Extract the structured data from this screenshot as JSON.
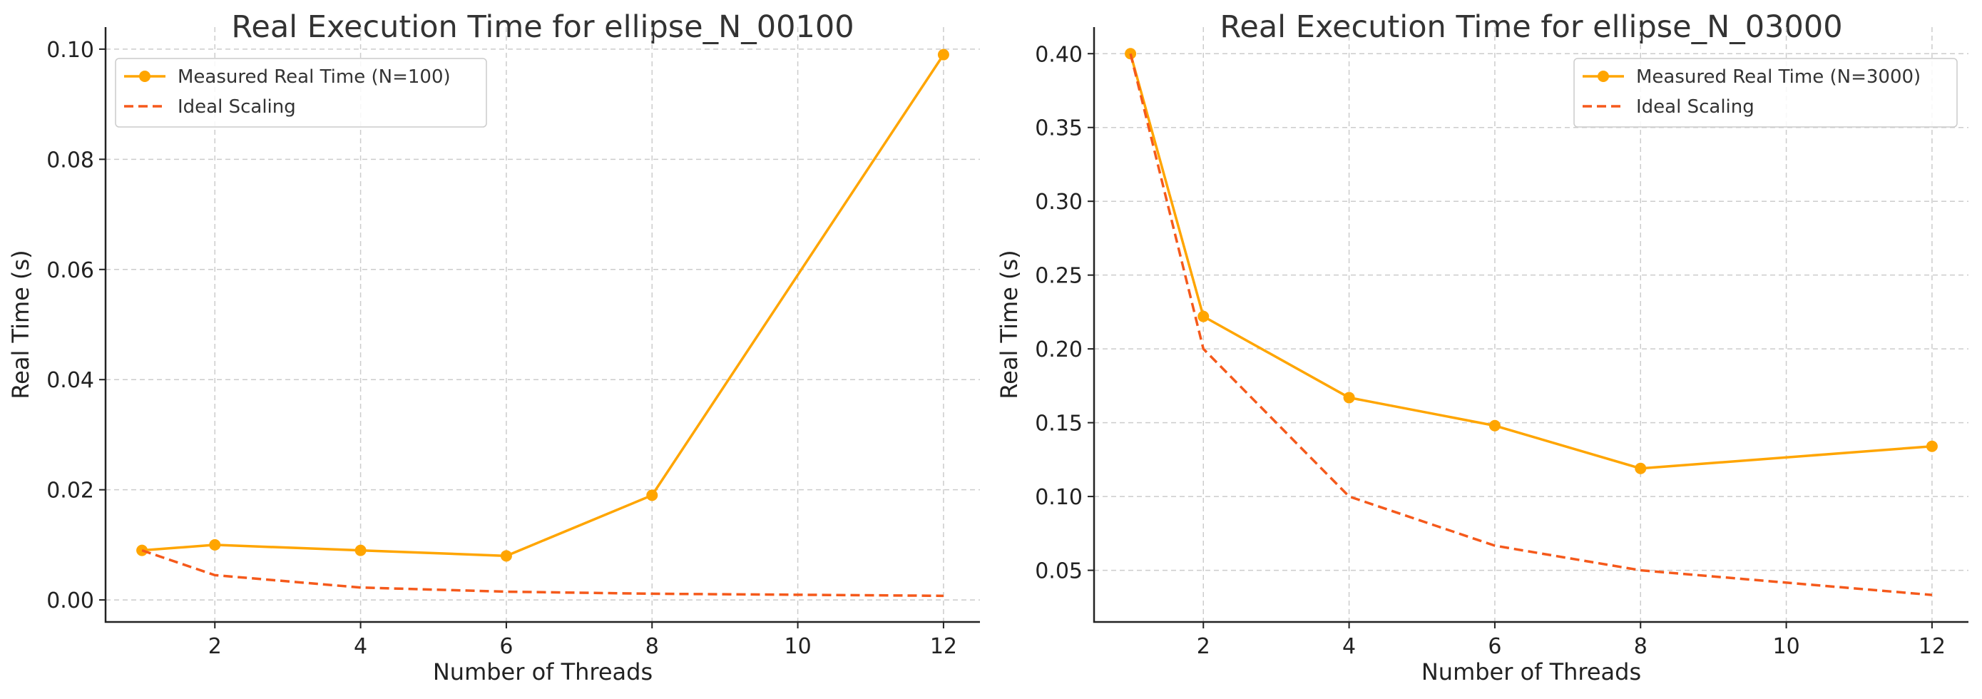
{
  "chart_data": [
    {
      "type": "line",
      "title": "Real Execution Time for ellipse_N_00100",
      "xlabel": "Number of Threads",
      "ylabel": "Real Time (s)",
      "x": [
        1,
        2,
        4,
        6,
        8,
        12
      ],
      "xlim": [
        0.5,
        12.5
      ],
      "ylim": [
        -0.004,
        0.104
      ],
      "xticks": [
        2,
        4,
        6,
        8,
        10,
        12
      ],
      "yticks": [
        0.0,
        0.02,
        0.04,
        0.06,
        0.08,
        0.1
      ],
      "ytick_labels": [
        "0.00",
        "0.02",
        "0.04",
        "0.06",
        "0.08",
        "0.10"
      ],
      "grid": true,
      "legend_position": "top-left",
      "series": [
        {
          "name": "Measured Real Time (N=100)",
          "values": [
            0.009,
            0.01,
            0.009,
            0.008,
            0.019,
            0.099
          ],
          "color": "#FFA500",
          "style": "solid",
          "marker": "circle"
        },
        {
          "name": "Ideal Scaling",
          "values": [
            0.009,
            0.0045,
            0.00225,
            0.0015,
            0.001125,
            0.00075
          ],
          "color": "#F5591B",
          "style": "dashed",
          "marker": "none"
        }
      ]
    },
    {
      "type": "line",
      "title": "Real Execution Time for ellipse_N_03000",
      "xlabel": "Number of Threads",
      "ylabel": "Real Time (s)",
      "x": [
        1,
        2,
        4,
        6,
        8,
        12
      ],
      "xlim": [
        0.5,
        12.5
      ],
      "ylim": [
        0.015,
        0.418
      ],
      "xticks": [
        2,
        4,
        6,
        8,
        10,
        12
      ],
      "yticks": [
        0.05,
        0.1,
        0.15,
        0.2,
        0.25,
        0.3,
        0.35,
        0.4
      ],
      "ytick_labels": [
        "0.05",
        "0.10",
        "0.15",
        "0.20",
        "0.25",
        "0.30",
        "0.35",
        "0.40"
      ],
      "grid": true,
      "legend_position": "top-right",
      "series": [
        {
          "name": "Measured Real Time (N=3000)",
          "values": [
            0.4,
            0.222,
            0.167,
            0.148,
            0.119,
            0.134
          ],
          "color": "#FFA500",
          "style": "solid",
          "marker": "circle"
        },
        {
          "name": "Ideal Scaling",
          "values": [
            0.4,
            0.2,
            0.1,
            0.0667,
            0.05,
            0.0333
          ],
          "color": "#F5591B",
          "style": "dashed",
          "marker": "none"
        }
      ]
    }
  ]
}
